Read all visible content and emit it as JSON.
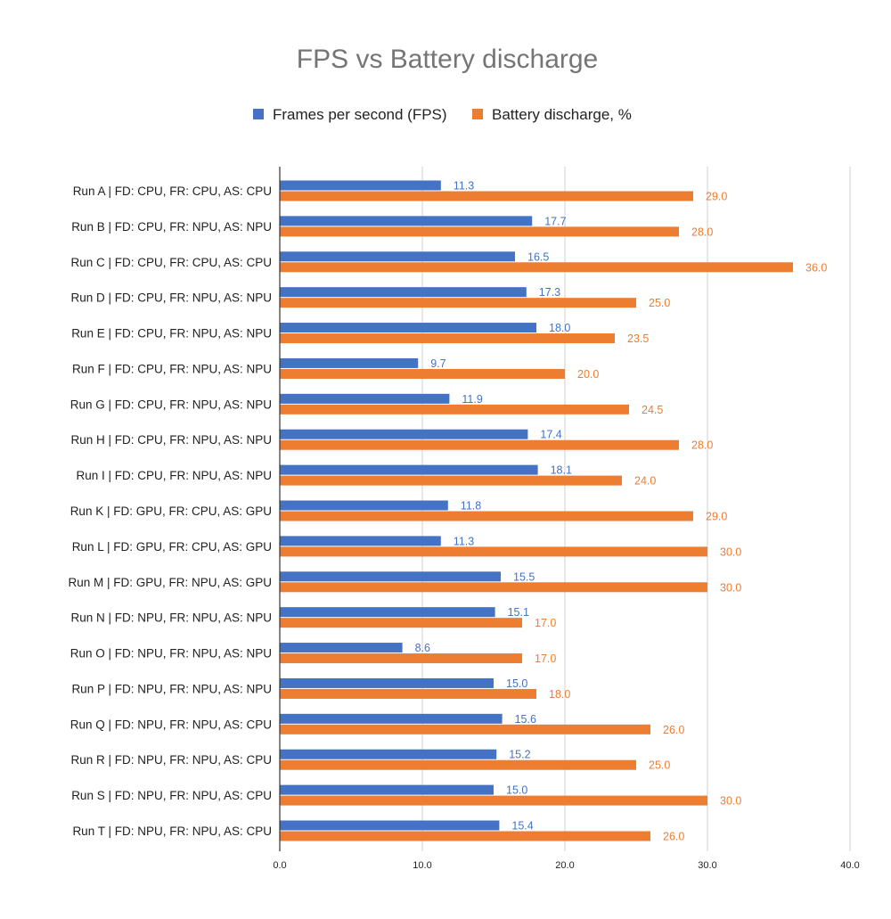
{
  "chart_data": {
    "type": "bar",
    "orientation": "horizontal",
    "title": "FPS vs Battery discharge",
    "xlabel": "",
    "ylabel": "",
    "xlim": [
      0,
      40
    ],
    "x_ticks": [
      "0.0",
      "10.0",
      "20.0",
      "30.0",
      "40.0"
    ],
    "grid": true,
    "legend_position": "top",
    "categories": [
      "Run A | FD: CPU, FR: CPU, AS: CPU",
      "Run B | FD: CPU, FR: NPU, AS: NPU",
      "Run C | FD: CPU, FR: CPU, AS: CPU",
      "Run D | FD: CPU, FR: NPU, AS: NPU",
      "Run E | FD: CPU, FR: NPU, AS: NPU",
      "Run F | FD: CPU, FR: NPU, AS: NPU",
      "Run G | FD: CPU, FR: NPU, AS: NPU",
      "Run H | FD: CPU, FR: NPU, AS: NPU",
      "Run I | FD: CPU, FR: NPU, AS: NPU",
      "Run K | FD: GPU, FR: CPU, AS: GPU",
      "Run L | FD: GPU, FR: CPU, AS: GPU",
      "Run M | FD: GPU, FR: NPU, AS: GPU",
      "Run N | FD: NPU, FR: NPU, AS: NPU",
      "Run O | FD: NPU, FR: NPU, AS: NPU",
      "Run P | FD: NPU, FR: NPU, AS: NPU",
      "Run Q | FD: NPU, FR: NPU, AS: CPU",
      "Run R | FD: NPU, FR: NPU, AS: CPU",
      "Run S | FD: NPU, FR: NPU, AS: CPU",
      "Run T | FD: NPU, FR: NPU, AS: CPU"
    ],
    "series": [
      {
        "name": "Frames per second (FPS)",
        "color": "#4472C4",
        "values": [
          11.3,
          17.7,
          16.5,
          17.3,
          18.0,
          9.7,
          11.9,
          17.4,
          18.1,
          11.8,
          11.3,
          15.5,
          15.1,
          8.6,
          15.0,
          15.6,
          15.2,
          15.0,
          15.4
        ]
      },
      {
        "name": "Battery discharge, %",
        "color": "#ED7D31",
        "values": [
          29.0,
          28.0,
          36.0,
          25.0,
          23.5,
          20.0,
          24.5,
          28.0,
          24.0,
          29.0,
          30.0,
          30.0,
          17.0,
          17.0,
          18.0,
          26.0,
          25.0,
          30.0,
          26.0
        ]
      }
    ]
  }
}
